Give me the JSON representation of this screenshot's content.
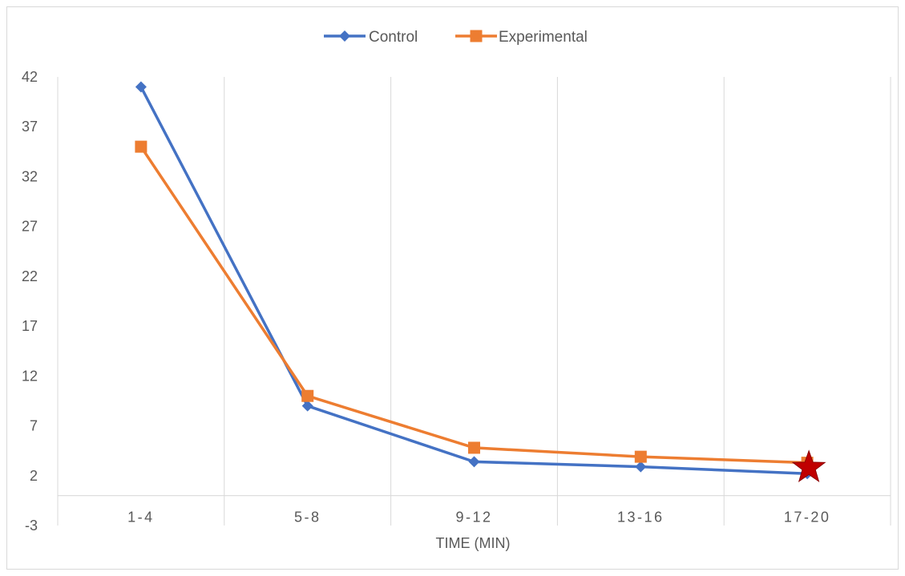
{
  "chart_data": {
    "type": "line",
    "title": "",
    "xlabel": "TIME (MIN)",
    "ylabel": "",
    "categories": [
      "1-4",
      "5-8",
      "9-12",
      "13-16",
      "17-20"
    ],
    "yticks": [
      -3,
      2,
      7,
      12,
      17,
      22,
      27,
      32,
      37,
      42
    ],
    "ylim": [
      -3,
      42
    ],
    "grid": "vertical",
    "legend": "top",
    "series": [
      {
        "name": "Control",
        "color": "#4472c4",
        "marker": "diamond",
        "values": [
          41,
          9,
          3.4,
          2.9,
          2.2
        ]
      },
      {
        "name": "Experimental",
        "color": "#ed7d31",
        "marker": "square",
        "values": [
          35,
          10,
          4.8,
          3.9,
          3.3
        ]
      }
    ],
    "annotations": [
      {
        "type": "star",
        "category": "17-20",
        "value": 2.8,
        "color": "#c00000"
      }
    ]
  }
}
